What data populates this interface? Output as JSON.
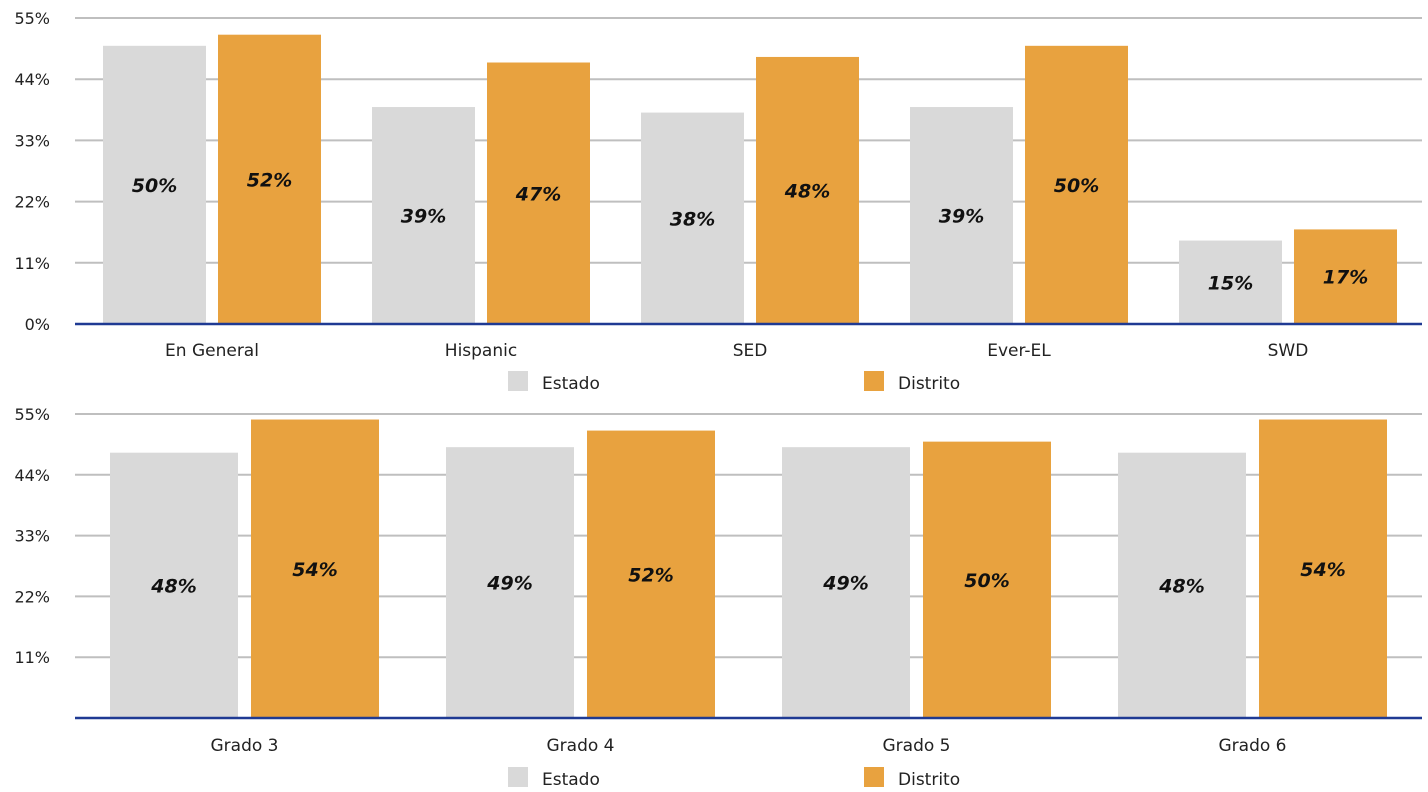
{
  "chart_data": [
    {
      "type": "bar",
      "categories": [
        "En General",
        "Hispanic",
        "SED",
        "Ever-EL",
        "SWD"
      ],
      "series": [
        {
          "name": "Estado",
          "values": [
            50,
            39,
            38,
            39,
            15
          ],
          "labels": [
            "50%",
            "39%",
            "38%",
            "39%",
            "15%"
          ]
        },
        {
          "name": "Distrito",
          "values": [
            52,
            47,
            48,
            50,
            17
          ],
          "labels": [
            "52%",
            "47%",
            "48%",
            "50%",
            "17%"
          ]
        }
      ],
      "yticks": [
        "0%",
        "11%",
        "22%",
        "33%",
        "44%",
        "55%"
      ],
      "ylim": [
        0,
        55
      ],
      "grid": true,
      "legend": "bottom"
    },
    {
      "type": "bar",
      "categories": [
        "Grado 3",
        "Grado 4",
        "Grado 5",
        "Grado 6"
      ],
      "series": [
        {
          "name": "Estado",
          "values": [
            48,
            49,
            49,
            48
          ],
          "labels": [
            "48%",
            "49%",
            "49%",
            "48%"
          ]
        },
        {
          "name": "Distrito",
          "values": [
            54,
            52,
            50,
            54
          ],
          "labels": [
            "54%",
            "52%",
            "50%",
            "54%"
          ]
        }
      ],
      "yticks": [
        "",
        "11%",
        "22%",
        "33%",
        "44%",
        "55%"
      ],
      "ylim": [
        0,
        55
      ],
      "grid": true,
      "legend": "bottom"
    }
  ],
  "colors": {
    "estado": "#d9d9d9",
    "distrito": "#e8a23f",
    "gridline": "#bfbfbf",
    "axis": "#1f3a93"
  }
}
